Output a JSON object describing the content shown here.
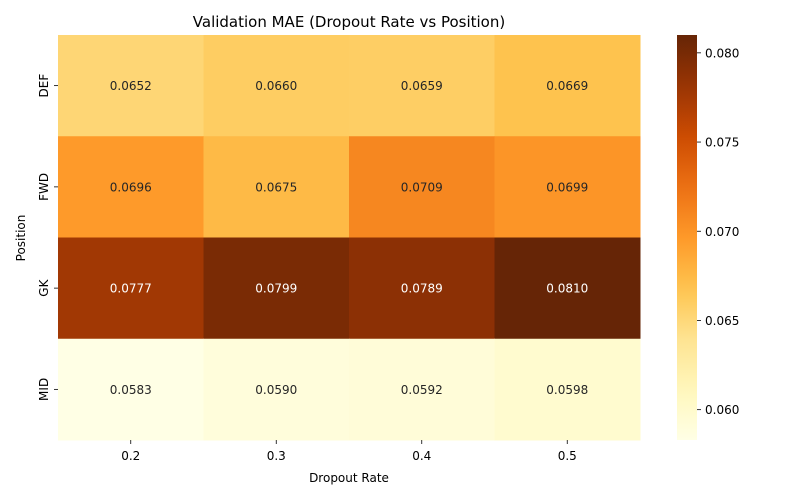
{
  "chart_data": {
    "type": "heatmap",
    "title": "Validation MAE (Dropout Rate vs Position)",
    "xlabel": "Dropout Rate",
    "ylabel": "Position",
    "x_categories": [
      "0.2",
      "0.3",
      "0.4",
      "0.5"
    ],
    "y_categories": [
      "DEF",
      "FWD",
      "GK",
      "MID"
    ],
    "values": [
      [
        0.0652,
        0.066,
        0.0659,
        0.0669
      ],
      [
        0.0696,
        0.0675,
        0.0709,
        0.0699
      ],
      [
        0.0777,
        0.0799,
        0.0789,
        0.081
      ],
      [
        0.0583,
        0.059,
        0.0592,
        0.0598
      ]
    ],
    "value_labels": [
      [
        "0.0652",
        "0.0660",
        "0.0659",
        "0.0669"
      ],
      [
        "0.0696",
        "0.0675",
        "0.0709",
        "0.0699"
      ],
      [
        "0.0777",
        "0.0799",
        "0.0789",
        "0.0810"
      ],
      [
        "0.0583",
        "0.0590",
        "0.0592",
        "0.0598"
      ]
    ],
    "colormap": "YlOrBr",
    "color_range": [
      0.0583,
      0.081
    ],
    "colorbar": {
      "ticks": [
        0.06,
        0.065,
        0.07,
        0.075,
        0.08
      ],
      "tick_labels": [
        "0.060",
        "0.065",
        "0.070",
        "0.075",
        "0.080"
      ]
    },
    "grid": false,
    "legend": "colorbar-right"
  }
}
